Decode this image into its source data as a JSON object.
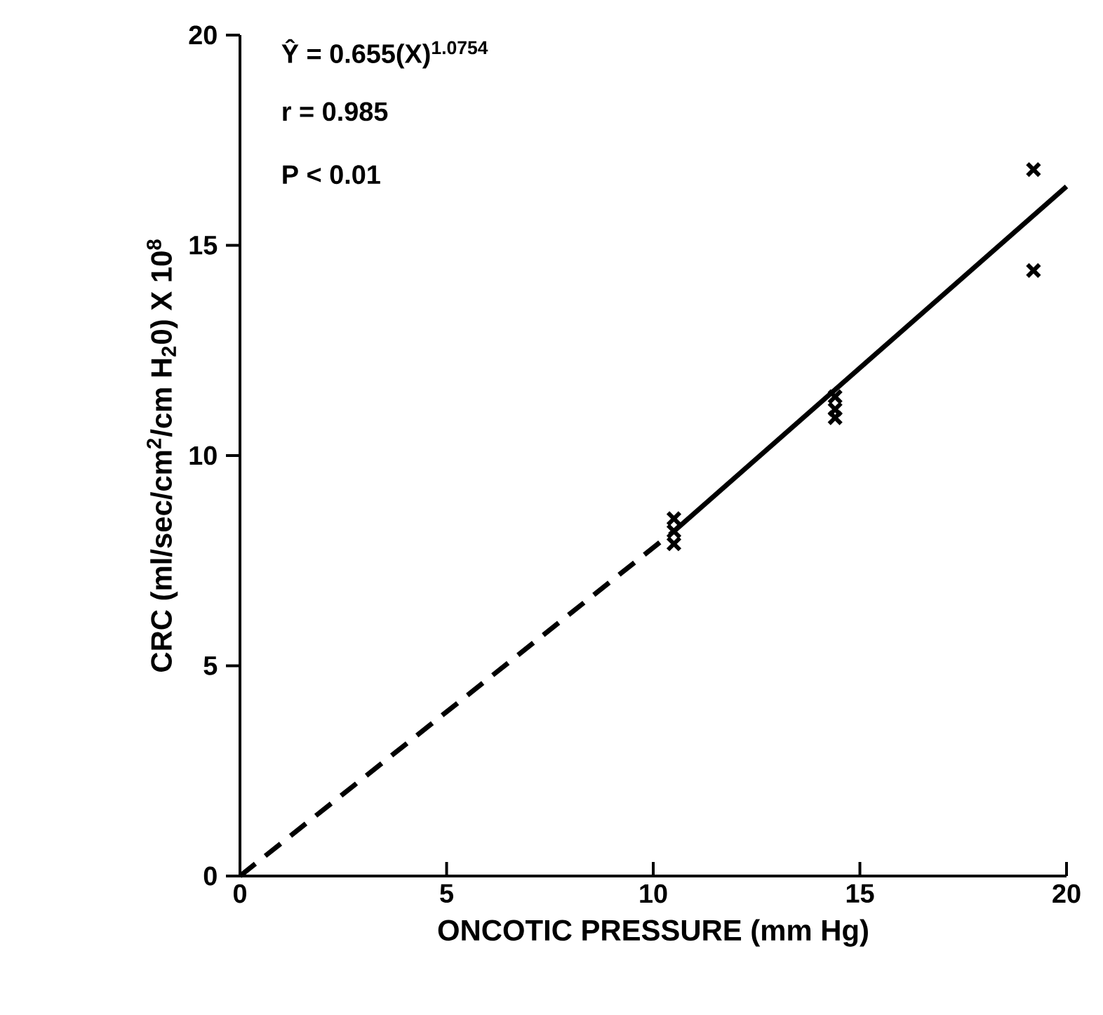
{
  "chart_data": {
    "type": "scatter",
    "xlabel": "ONCOTIC PRESSURE (mm Hg)",
    "ylabel": "CRC (ml/sec/cm$^{2}$/cm H$_{2}$0) X 10$^{8}$",
    "annotations": [
      "Ŷ = 0.655(X)$^{1.0754}$",
      "r = 0.985",
      "P < 0.01"
    ],
    "xlim": [
      0,
      20
    ],
    "ylim": [
      0,
      20
    ],
    "xticks": [
      0,
      5,
      10,
      15,
      20
    ],
    "yticks": [
      0,
      5,
      10,
      15,
      20
    ],
    "grid": false,
    "series": [
      {
        "marker": "cross",
        "color": "#000000",
        "x": [
          10.5,
          10.5,
          10.5,
          14.4,
          14.4,
          14.4,
          19.2,
          19.2
        ],
        "values": [
          8.5,
          8.2,
          7.9,
          11.4,
          11.1,
          10.9,
          16.8,
          14.4
        ]
      },
      {
        "type": "line",
        "marker": "none",
        "line_style": "dashed",
        "color": "#000000",
        "x": [
          0,
          10.5
        ],
        "values": [
          0,
          8.2
        ]
      },
      {
        "type": "line",
        "marker": "none",
        "line_style": "solid",
        "color": "#000000",
        "x": [
          10.5,
          20
        ],
        "values": [
          8.2,
          16.4
        ]
      }
    ]
  }
}
